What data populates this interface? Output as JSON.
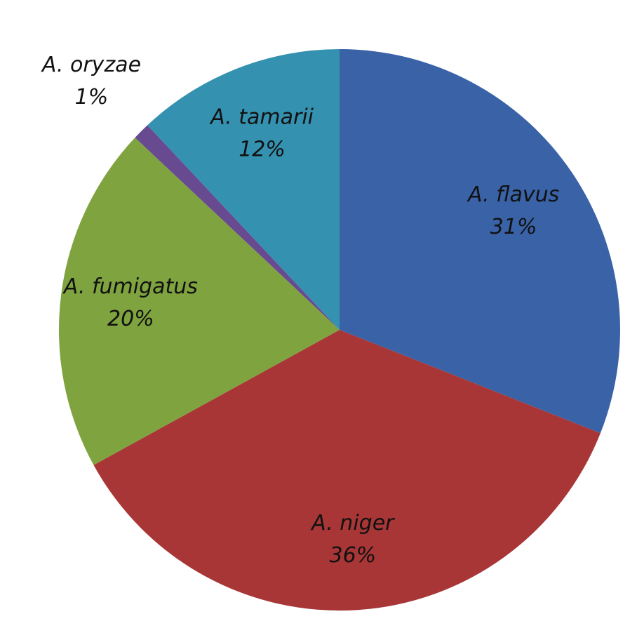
{
  "chart_data": {
    "type": "pie",
    "categories": [
      "A. flavus",
      "A. niger",
      "A. fumigatus",
      "A. oryzae",
      "A. tamarii"
    ],
    "values": [
      31,
      36,
      20,
      1,
      12
    ],
    "value_labels": [
      "31%",
      "36%",
      "20%",
      "1%",
      "12%"
    ],
    "colors": [
      "#3a62a7",
      "#a83636",
      "#7fa33f",
      "#674a8f",
      "#3591b0"
    ]
  }
}
